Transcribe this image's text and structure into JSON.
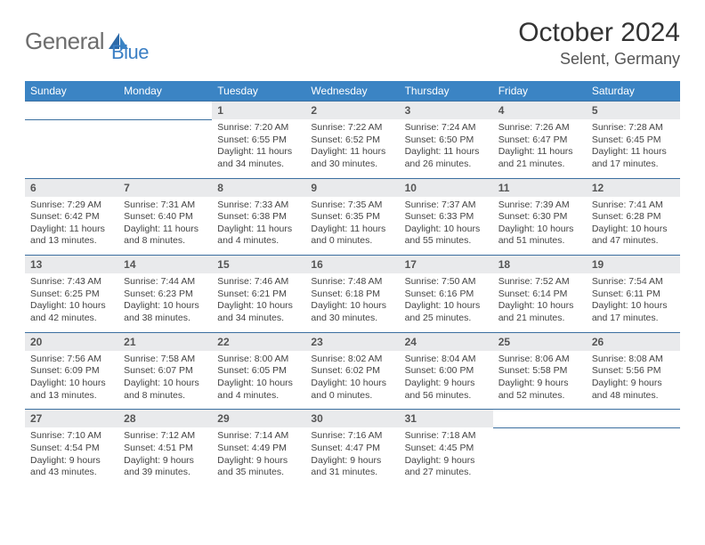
{
  "logo": {
    "text1": "General",
    "text2": "Blue"
  },
  "title": "October 2024",
  "location": "Selent, Germany",
  "day_headers": [
    "Sunday",
    "Monday",
    "Tuesday",
    "Wednesday",
    "Thursday",
    "Friday",
    "Saturday"
  ],
  "colors": {
    "header_bg": "#3b84c4",
    "header_fg": "#ffffff",
    "numrow_bg": "#e9eaec",
    "rule": "#3b6fa0",
    "logo_gray": "#6d6d6d",
    "logo_blue": "#3b7fc4"
  },
  "weeks": [
    [
      null,
      null,
      {
        "n": "1",
        "sr": "Sunrise: 7:20 AM",
        "ss": "Sunset: 6:55 PM",
        "d1": "Daylight: 11 hours",
        "d2": "and 34 minutes."
      },
      {
        "n": "2",
        "sr": "Sunrise: 7:22 AM",
        "ss": "Sunset: 6:52 PM",
        "d1": "Daylight: 11 hours",
        "d2": "and 30 minutes."
      },
      {
        "n": "3",
        "sr": "Sunrise: 7:24 AM",
        "ss": "Sunset: 6:50 PM",
        "d1": "Daylight: 11 hours",
        "d2": "and 26 minutes."
      },
      {
        "n": "4",
        "sr": "Sunrise: 7:26 AM",
        "ss": "Sunset: 6:47 PM",
        "d1": "Daylight: 11 hours",
        "d2": "and 21 minutes."
      },
      {
        "n": "5",
        "sr": "Sunrise: 7:28 AM",
        "ss": "Sunset: 6:45 PM",
        "d1": "Daylight: 11 hours",
        "d2": "and 17 minutes."
      }
    ],
    [
      {
        "n": "6",
        "sr": "Sunrise: 7:29 AM",
        "ss": "Sunset: 6:42 PM",
        "d1": "Daylight: 11 hours",
        "d2": "and 13 minutes."
      },
      {
        "n": "7",
        "sr": "Sunrise: 7:31 AM",
        "ss": "Sunset: 6:40 PM",
        "d1": "Daylight: 11 hours",
        "d2": "and 8 minutes."
      },
      {
        "n": "8",
        "sr": "Sunrise: 7:33 AM",
        "ss": "Sunset: 6:38 PM",
        "d1": "Daylight: 11 hours",
        "d2": "and 4 minutes."
      },
      {
        "n": "9",
        "sr": "Sunrise: 7:35 AM",
        "ss": "Sunset: 6:35 PM",
        "d1": "Daylight: 11 hours",
        "d2": "and 0 minutes."
      },
      {
        "n": "10",
        "sr": "Sunrise: 7:37 AM",
        "ss": "Sunset: 6:33 PM",
        "d1": "Daylight: 10 hours",
        "d2": "and 55 minutes."
      },
      {
        "n": "11",
        "sr": "Sunrise: 7:39 AM",
        "ss": "Sunset: 6:30 PM",
        "d1": "Daylight: 10 hours",
        "d2": "and 51 minutes."
      },
      {
        "n": "12",
        "sr": "Sunrise: 7:41 AM",
        "ss": "Sunset: 6:28 PM",
        "d1": "Daylight: 10 hours",
        "d2": "and 47 minutes."
      }
    ],
    [
      {
        "n": "13",
        "sr": "Sunrise: 7:43 AM",
        "ss": "Sunset: 6:25 PM",
        "d1": "Daylight: 10 hours",
        "d2": "and 42 minutes."
      },
      {
        "n": "14",
        "sr": "Sunrise: 7:44 AM",
        "ss": "Sunset: 6:23 PM",
        "d1": "Daylight: 10 hours",
        "d2": "and 38 minutes."
      },
      {
        "n": "15",
        "sr": "Sunrise: 7:46 AM",
        "ss": "Sunset: 6:21 PM",
        "d1": "Daylight: 10 hours",
        "d2": "and 34 minutes."
      },
      {
        "n": "16",
        "sr": "Sunrise: 7:48 AM",
        "ss": "Sunset: 6:18 PM",
        "d1": "Daylight: 10 hours",
        "d2": "and 30 minutes."
      },
      {
        "n": "17",
        "sr": "Sunrise: 7:50 AM",
        "ss": "Sunset: 6:16 PM",
        "d1": "Daylight: 10 hours",
        "d2": "and 25 minutes."
      },
      {
        "n": "18",
        "sr": "Sunrise: 7:52 AM",
        "ss": "Sunset: 6:14 PM",
        "d1": "Daylight: 10 hours",
        "d2": "and 21 minutes."
      },
      {
        "n": "19",
        "sr": "Sunrise: 7:54 AM",
        "ss": "Sunset: 6:11 PM",
        "d1": "Daylight: 10 hours",
        "d2": "and 17 minutes."
      }
    ],
    [
      {
        "n": "20",
        "sr": "Sunrise: 7:56 AM",
        "ss": "Sunset: 6:09 PM",
        "d1": "Daylight: 10 hours",
        "d2": "and 13 minutes."
      },
      {
        "n": "21",
        "sr": "Sunrise: 7:58 AM",
        "ss": "Sunset: 6:07 PM",
        "d1": "Daylight: 10 hours",
        "d2": "and 8 minutes."
      },
      {
        "n": "22",
        "sr": "Sunrise: 8:00 AM",
        "ss": "Sunset: 6:05 PM",
        "d1": "Daylight: 10 hours",
        "d2": "and 4 minutes."
      },
      {
        "n": "23",
        "sr": "Sunrise: 8:02 AM",
        "ss": "Sunset: 6:02 PM",
        "d1": "Daylight: 10 hours",
        "d2": "and 0 minutes."
      },
      {
        "n": "24",
        "sr": "Sunrise: 8:04 AM",
        "ss": "Sunset: 6:00 PM",
        "d1": "Daylight: 9 hours",
        "d2": "and 56 minutes."
      },
      {
        "n": "25",
        "sr": "Sunrise: 8:06 AM",
        "ss": "Sunset: 5:58 PM",
        "d1": "Daylight: 9 hours",
        "d2": "and 52 minutes."
      },
      {
        "n": "26",
        "sr": "Sunrise: 8:08 AM",
        "ss": "Sunset: 5:56 PM",
        "d1": "Daylight: 9 hours",
        "d2": "and 48 minutes."
      }
    ],
    [
      {
        "n": "27",
        "sr": "Sunrise: 7:10 AM",
        "ss": "Sunset: 4:54 PM",
        "d1": "Daylight: 9 hours",
        "d2": "and 43 minutes."
      },
      {
        "n": "28",
        "sr": "Sunrise: 7:12 AM",
        "ss": "Sunset: 4:51 PM",
        "d1": "Daylight: 9 hours",
        "d2": "and 39 minutes."
      },
      {
        "n": "29",
        "sr": "Sunrise: 7:14 AM",
        "ss": "Sunset: 4:49 PM",
        "d1": "Daylight: 9 hours",
        "d2": "and 35 minutes."
      },
      {
        "n": "30",
        "sr": "Sunrise: 7:16 AM",
        "ss": "Sunset: 4:47 PM",
        "d1": "Daylight: 9 hours",
        "d2": "and 31 minutes."
      },
      {
        "n": "31",
        "sr": "Sunrise: 7:18 AM",
        "ss": "Sunset: 4:45 PM",
        "d1": "Daylight: 9 hours",
        "d2": "and 27 minutes."
      },
      null,
      null
    ]
  ]
}
